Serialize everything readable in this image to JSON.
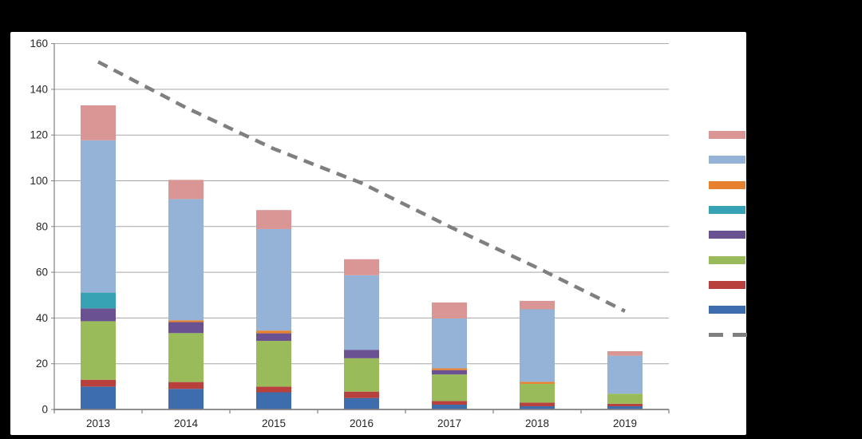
{
  "chart_data": {
    "type": "bar",
    "subtype": "stacked-bars-with-dashed-trend-line",
    "title": "",
    "xlabel": "",
    "ylabel": "",
    "categories": [
      "2013",
      "2014",
      "2015",
      "2016",
      "2017",
      "2018",
      "2019"
    ],
    "ylim": [
      0,
      160
    ],
    "ytick_step": 20,
    "y_tick_labels": [
      "0",
      "20",
      "40",
      "60",
      "80",
      "100",
      "120",
      "140",
      "160"
    ],
    "grid": true,
    "legend_position": "right",
    "legend_labels_visible": false,
    "series": [
      {
        "name": "dark-blue",
        "color": "#3E6DAD",
        "values": [
          10.0,
          9.0,
          7.5,
          5.0,
          2.1,
          1.4,
          1.4
        ]
      },
      {
        "name": "dark-red",
        "color": "#B8413E",
        "values": [
          3.0,
          3.0,
          2.5,
          2.8,
          1.6,
          1.6,
          1.1
        ]
      },
      {
        "name": "green",
        "color": "#9ABB59",
        "values": [
          25.6,
          21.4,
          20.0,
          14.6,
          11.6,
          8.2,
          4.4
        ]
      },
      {
        "name": "purple",
        "color": "#6A5192",
        "values": [
          5.6,
          4.8,
          3.3,
          3.7,
          1.9,
          0,
          0
        ]
      },
      {
        "name": "teal",
        "color": "#36A2B4",
        "values": [
          6.9,
          0,
          0,
          0,
          0,
          0,
          0
        ]
      },
      {
        "name": "orange",
        "color": "#E6812F",
        "values": [
          0,
          0.8,
          1.2,
          0,
          0.8,
          0.9,
          0
        ]
      },
      {
        "name": "light-blue",
        "color": "#95B3D7",
        "values": [
          66.6,
          53.0,
          44.4,
          32.6,
          21.8,
          31.7,
          16.6
        ]
      },
      {
        "name": "salmon",
        "color": "#D99694",
        "values": [
          15.3,
          8.4,
          8.3,
          7.0,
          7.0,
          3.7,
          2.0
        ]
      }
    ],
    "bar_totals": [
      133,
      100.4,
      87.2,
      65.7,
      46.8,
      47.5,
      25.5
    ],
    "line_series": {
      "name": "dashed-trend",
      "color": "#7F7F7F",
      "style": "dashed",
      "values": [
        152,
        132,
        114,
        99,
        80,
        62,
        43
      ]
    },
    "legend": [
      {
        "name": "salmon",
        "type": "box",
        "color": "#D99694"
      },
      {
        "name": "light-blue",
        "type": "box",
        "color": "#95B3D7"
      },
      {
        "name": "orange",
        "type": "box",
        "color": "#E6812F"
      },
      {
        "name": "teal",
        "type": "box",
        "color": "#36A2B4"
      },
      {
        "name": "purple",
        "type": "box",
        "color": "#6A5192"
      },
      {
        "name": "green",
        "type": "box",
        "color": "#9ABB59"
      },
      {
        "name": "dark-red",
        "type": "box",
        "color": "#B8413E"
      },
      {
        "name": "dark-blue",
        "type": "box",
        "color": "#3E6DAD"
      },
      {
        "name": "dashed-trend",
        "type": "dash",
        "color": "#7F7F7F"
      }
    ],
    "colors": {
      "gridline": "#A6A6A6",
      "axis": "#808080",
      "tick_text": "#262626",
      "panel_bg": "#FFFFFF",
      "page_bg": "#000000"
    }
  }
}
